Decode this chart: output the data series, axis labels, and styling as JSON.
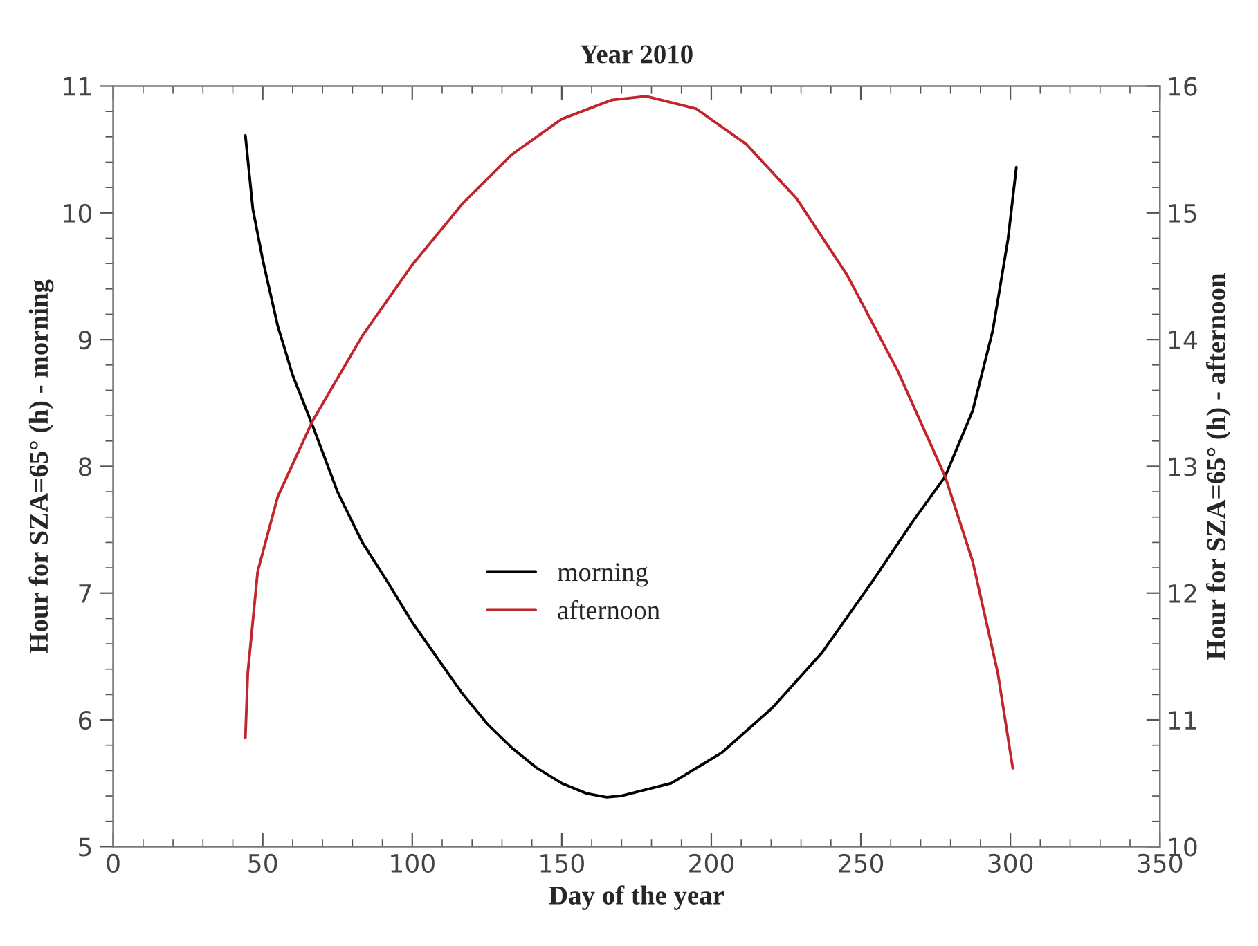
{
  "chart_data": {
    "type": "line",
    "title": "Year 2010",
    "xlabel": "Day of the year",
    "ylabel": "Hour for SZA=65° (h) - morning",
    "y2label": "Hour for SZA=65° (h) - afternoon",
    "xlim": [
      0,
      350
    ],
    "xticks": [
      0,
      50,
      100,
      150,
      200,
      250,
      300,
      350
    ],
    "ylim": [
      5,
      11
    ],
    "yticks": [
      5,
      6,
      7,
      8,
      9,
      10,
      11
    ],
    "y2lim": [
      10,
      16
    ],
    "y2ticks": [
      10,
      11,
      12,
      13,
      14,
      15,
      16
    ],
    "grid": false,
    "legend": "lower center",
    "marker": "none",
    "line_style": "solid",
    "series": [
      {
        "name": "morning",
        "color": "#000000",
        "x": [
          44.2,
          46.7,
          50,
          55,
          60,
          66.7,
          75,
          83.3,
          91.7,
          100,
          108.3,
          116.7,
          125,
          133.3,
          141.7,
          150,
          158.3,
          165,
          169.7,
          186.6,
          203.4,
          220.2,
          237,
          253.8,
          267.2,
          278.2,
          287.4,
          294.1,
          299.2,
          302
        ],
        "values": [
          10.61,
          10.03,
          9.63,
          9.11,
          8.72,
          8.32,
          7.8,
          7.4,
          7.09,
          6.77,
          6.49,
          6.21,
          5.97,
          5.78,
          5.62,
          5.5,
          5.42,
          5.39,
          5.4,
          5.5,
          5.74,
          6.09,
          6.53,
          7.09,
          7.56,
          7.92,
          8.44,
          9.07,
          9.79,
          10.36
        ]
      },
      {
        "name": "afternoon",
        "color": "#c0262b",
        "axis": "y2",
        "x": [
          44.2,
          45,
          48.3,
          55,
          66.7,
          83.3,
          100,
          116.7,
          133.3,
          150,
          166.7,
          178.2,
          195,
          211.8,
          228.6,
          245.4,
          262.2,
          278.2,
          287.4,
          295.8,
          300.8
        ],
        "values": [
          10.86,
          11.37,
          12.17,
          12.76,
          13.36,
          14.03,
          14.59,
          15.07,
          15.46,
          15.74,
          15.89,
          15.92,
          15.82,
          15.54,
          15.11,
          14.51,
          13.76,
          12.92,
          12.25,
          11.37,
          10.62
        ]
      }
    ]
  }
}
